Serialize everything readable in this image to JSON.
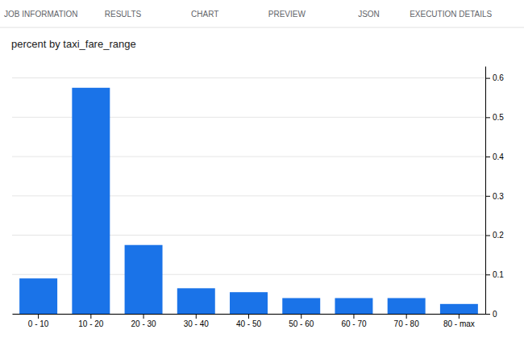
{
  "chart_data": {
    "type": "bar",
    "title": "percent by taxi_fare_range",
    "annotations": [
      "JOB INFORMATION",
      "RESULTS",
      "CHART",
      "PREVIEW",
      "JSON",
      "EXECUTION DETAILS"
    ],
    "categories": [
      "0 - 10",
      "10 - 20",
      "20 - 30",
      "30 - 40",
      "40 - 50",
      "50 - 60",
      "60 - 70",
      "70 - 80",
      "80 - max"
    ],
    "values": [
      0.09,
      0.575,
      0.175,
      0.065,
      0.055,
      0.04,
      0.04,
      0.04,
      0.025
    ],
    "color": "#1a73e8",
    "ylim": [
      0,
      0.63
    ],
    "yticks": [
      0,
      0.1,
      0.2,
      0.3,
      0.4,
      0.5,
      0.6
    ],
    "grid": true
  }
}
